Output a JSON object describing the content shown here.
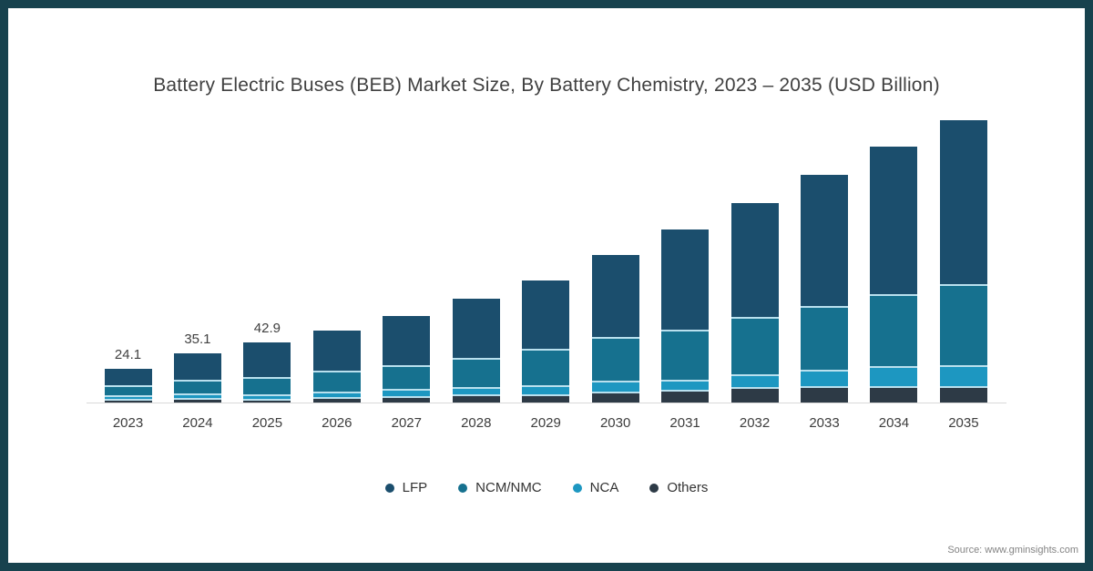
{
  "title": "Battery Electric Buses (BEB) Market Size, By Battery Chemistry, 2023 – 2035 (USD Billion)",
  "source_note": "Source: www.gminsights.com",
  "colors": {
    "frame_border": "#17424e",
    "lfp": "#1b4e6d",
    "ncm_nmc": "#16718f",
    "nca": "#1d97c1",
    "others": "#2d3a46",
    "segment_separator": "#b9e0ee",
    "axis_line": "#d9d9d9",
    "text": "#404040"
  },
  "chart_data": {
    "type": "bar",
    "stacked": true,
    "title": "Battery Electric Buses (BEB) Market Size, By Battery Chemistry, 2023 – 2035 (USD Billion)",
    "xlabel": "",
    "ylabel": "USD Billion",
    "ylim": [
      0,
      210
    ],
    "grid": false,
    "legend_position": "bottom",
    "categories": [
      "2023",
      "2024",
      "2025",
      "2026",
      "2027",
      "2028",
      "2029",
      "2030",
      "2031",
      "2032",
      "2033",
      "2034",
      "2035"
    ],
    "bar_labels": [
      "24.1",
      "35.1",
      "42.9",
      "",
      "",
      "",
      "",
      "",
      "",
      "",
      "",
      "",
      ""
    ],
    "labeled_totals": {
      "2023": 24.1,
      "2024": 35.1,
      "2025": 42.9
    },
    "estimated_totals": [
      24.1,
      35.1,
      42.9,
      51.5,
      61.5,
      74.0,
      87.0,
      105.0,
      123.0,
      142.0,
      162.0,
      182.0,
      201.0
    ],
    "stack_order_bottom_to_top": [
      "Others",
      "NCA",
      "NCM/NMC",
      "LFP"
    ],
    "series": [
      {
        "name": "LFP",
        "color": "#1b4e6d",
        "values": [
          11.7,
          19.0,
          24.5,
          28.7,
          34.9,
          42.2,
          48.9,
          58.3,
          71.1,
          81.2,
          93.5,
          104.9,
          116.6
        ]
      },
      {
        "name": "NCM/NMC",
        "color": "#16718f",
        "values": [
          7.2,
          9.5,
          12.6,
          14.9,
          16.8,
          20.9,
          25.5,
          31.4,
          35.8,
          40.9,
          45.5,
          51.5,
          57.6
        ]
      },
      {
        "name": "NCA",
        "color": "#1d97c1",
        "values": [
          2.6,
          3.3,
          3.3,
          3.9,
          5.0,
          5.1,
          6.9,
          7.7,
          7.1,
          8.9,
          11.5,
          14.1,
          15.1
        ]
      },
      {
        "name": "Others",
        "color": "#2d3a46",
        "values": [
          2.6,
          3.3,
          2.5,
          4.0,
          4.8,
          5.8,
          5.7,
          7.6,
          9.0,
          11.0,
          11.5,
          11.5,
          11.7
        ]
      }
    ]
  }
}
